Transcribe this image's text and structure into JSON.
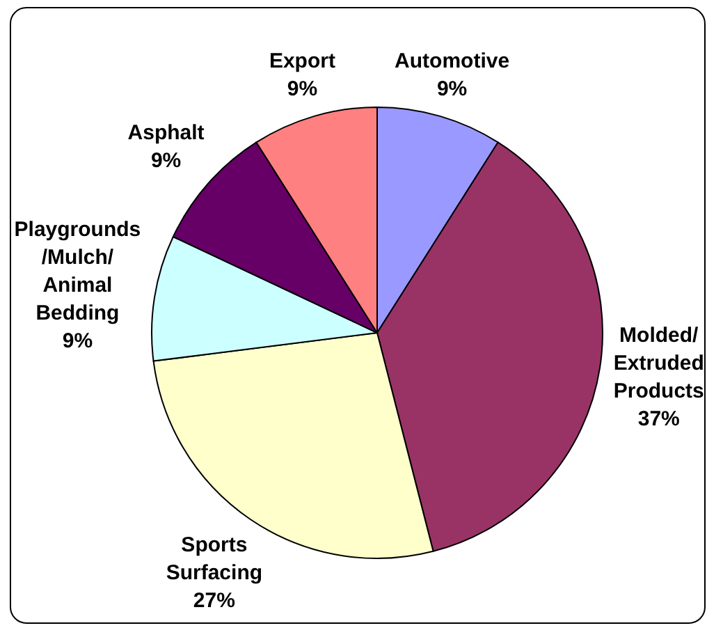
{
  "chart_data": {
    "type": "pie",
    "categories": [
      "Automotive",
      "Molded/ Extruded Products",
      "Sports Surfacing",
      "Playgrounds /Mulch/ Animal Bedding",
      "Asphalt",
      "Export"
    ],
    "values": [
      9,
      37,
      27,
      9,
      9,
      9
    ],
    "value_labels": [
      "9%",
      "37%",
      "27%",
      "9%",
      "9%",
      "9%"
    ],
    "colors": [
      "#9999ff",
      "#993366",
      "#ffffcc",
      "#ccffff",
      "#660066",
      "#ff8080"
    ]
  }
}
